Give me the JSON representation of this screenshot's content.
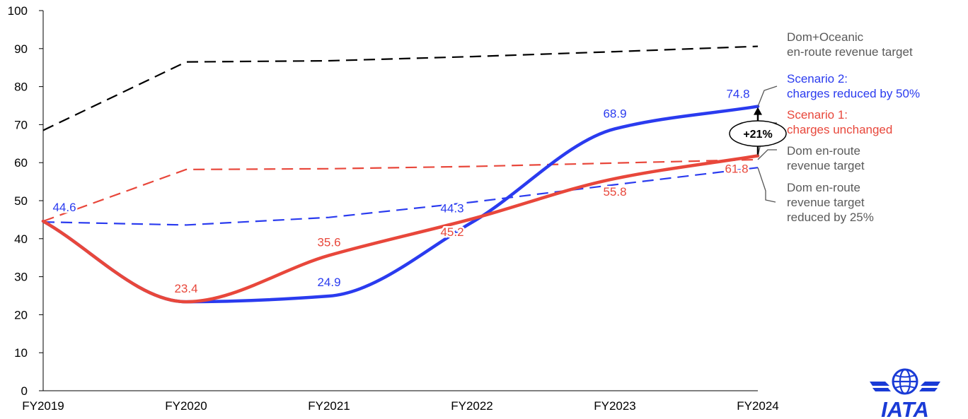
{
  "chart_data": {
    "type": "line",
    "x": [
      "FY2019",
      "FY2020",
      "FY2021",
      "FY2022",
      "FY2023",
      "FY2024"
    ],
    "ylim": [
      0,
      100
    ],
    "yticks": [
      0,
      10,
      20,
      30,
      40,
      50,
      60,
      70,
      80,
      90,
      100
    ],
    "grid": false,
    "legend": "right",
    "series": [
      {
        "key": "domoceanic",
        "label_lines": [
          "Dom+Oceanic",
          "en-route revenue target"
        ],
        "values": [
          68.5,
          86.5,
          86.8,
          87.9,
          89.2,
          90.6
        ],
        "color": "#000000",
        "style": "dashed"
      },
      {
        "key": "domtarget",
        "label_lines": [
          "Dom en-route",
          "revenue target"
        ],
        "values": [
          44.6,
          58.2,
          58.4,
          59.0,
          59.9,
          60.8
        ],
        "color": "#e8473b",
        "style": "dashed"
      },
      {
        "key": "domreduced",
        "label_lines": [
          "Dom en-route",
          "revenue target",
          "reduced by 25%"
        ],
        "values": [
          44.4,
          43.6,
          45.6,
          49.6,
          54.2,
          58.7
        ],
        "color": "#2a3bef",
        "style": "dashed"
      },
      {
        "key": "scenario1",
        "label_lines": [
          "Scenario 1:",
          "charges unchanged"
        ],
        "values": [
          44.6,
          23.4,
          35.6,
          45.2,
          55.8,
          61.8
        ],
        "data_labels": [
          "",
          "23.4",
          "35.6",
          "45.2",
          "55.8",
          "61.8"
        ],
        "color": "#e8473b",
        "style": "solid"
      },
      {
        "key": "scenario2",
        "label_lines": [
          "Scenario 2:",
          "charges reduced by 50%"
        ],
        "values": [
          44.6,
          23.4,
          24.9,
          44.3,
          68.9,
          74.8
        ],
        "data_labels": [
          "44.6",
          "",
          "24.9",
          "44.3",
          "68.9",
          "74.8"
        ],
        "color": "#2a3bef",
        "style": "solid"
      }
    ],
    "annotation": {
      "text": "+21%"
    }
  },
  "logo": {
    "text": "IATA",
    "color": "#1a3bd6",
    "icon": "globe-wings-icon"
  }
}
